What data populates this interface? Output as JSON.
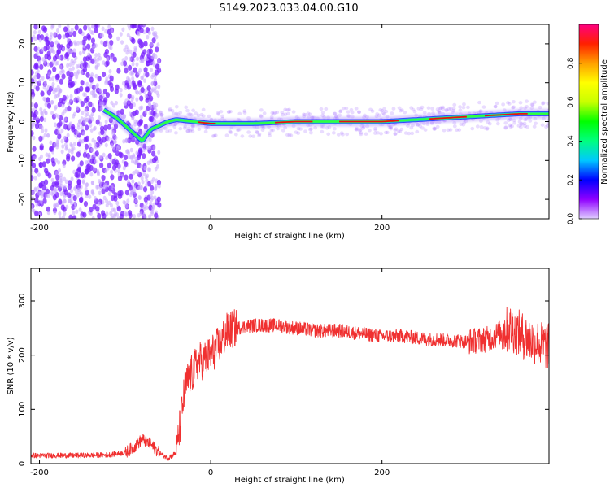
{
  "title": "S149.2023.033.04.00.G10",
  "colors": {
    "snr_line": "#f03030",
    "spectrum_ridge": "#e81010",
    "spectrum_halo": "#9a60ff",
    "colormap": [
      "#e0d0ff",
      "#9000ff",
      "#0000ff",
      "#00c8ff",
      "#00ff80",
      "#00ff00",
      "#c8ff00",
      "#ffff00",
      "#ffa000",
      "#ff2000",
      "#ff0080"
    ]
  },
  "chart_data": [
    {
      "type": "heatmap",
      "xlabel": "Height of straight line (km)",
      "ylabel": "Frequency (Hz)",
      "xlim": [
        -210,
        395
      ],
      "ylim": [
        -25,
        25
      ],
      "xticks": [
        -200,
        0,
        200
      ],
      "yticks": [
        -20,
        -10,
        0,
        10,
        20
      ],
      "grid": false,
      "colorbar": {
        "label": "Normalized spectral amplitude",
        "range": [
          0,
          1
        ],
        "ticks": [
          0.0,
          0.2,
          0.4,
          0.6,
          0.8
        ]
      },
      "ridge": {
        "x": [
          -125,
          -110,
          -100,
          -90,
          -80,
          -70,
          -60,
          -50,
          -40,
          -20,
          0,
          50,
          100,
          150,
          200,
          240,
          280,
          320,
          360,
          395
        ],
        "y": [
          3,
          1,
          -1,
          -3,
          -5,
          -2,
          -1,
          0,
          0.5,
          0,
          -0.5,
          -0.5,
          0,
          0,
          0,
          0.5,
          1,
          1.5,
          2,
          2
        ]
      }
    },
    {
      "type": "line",
      "xlabel": "Height of straight line (km)",
      "ylabel": "SNR (10 * v/v)",
      "xlim": [
        -210,
        395
      ],
      "ylim": [
        0,
        360
      ],
      "xticks": [
        -200,
        0,
        200
      ],
      "yticks": [
        0,
        100,
        200,
        300
      ],
      "grid": false,
      "series": [
        {
          "x": [
            -210,
            -180,
            -150,
            -120,
            -100,
            -90,
            -80,
            -70,
            -60,
            -50,
            -40,
            -35,
            -30,
            -25,
            -20,
            -15,
            -10,
            0,
            10,
            20,
            30,
            50,
            75,
            100,
            125,
            150,
            175,
            200,
            225,
            250,
            275,
            300,
            325,
            350,
            370,
            385,
            395
          ],
          "y": [
            15,
            15,
            15,
            16,
            20,
            30,
            45,
            35,
            20,
            10,
            20,
            80,
            140,
            160,
            170,
            190,
            190,
            200,
            220,
            245,
            250,
            255,
            255,
            250,
            245,
            245,
            240,
            235,
            235,
            230,
            228,
            225,
            230,
            250,
            230,
            220,
            215
          ]
        }
      ]
    }
  ]
}
